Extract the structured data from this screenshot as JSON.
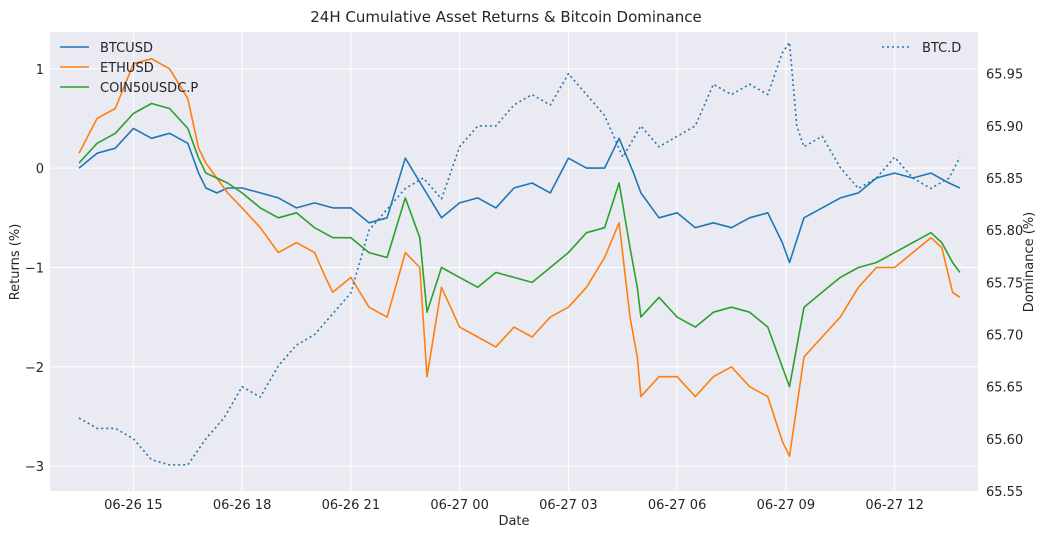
{
  "chart_data": {
    "type": "line",
    "title": "24H Cumulative Asset Returns & Bitcoin Dominance",
    "xlabel": "Date",
    "ylabel": "Returns (%)",
    "y2label": "Dominance (%)",
    "x_ticks": [
      "06-26 15",
      "06-26 18",
      "06-26 21",
      "06-27 00",
      "06-27 03",
      "06-27 06",
      "06-27 09",
      "06-27 12"
    ],
    "x_range_hours": [
      12.7,
      38.3
    ],
    "ylim": [
      -3.25,
      1.37
    ],
    "y_ticks": [
      1,
      0,
      -1,
      -2,
      -3
    ],
    "y2lim": [
      65.55,
      65.99
    ],
    "y2_ticks": [
      65.95,
      65.9,
      65.85,
      65.8,
      65.75,
      65.7,
      65.65,
      65.6,
      65.55
    ],
    "grid": true,
    "legend_left": "top-left",
    "legend_right": "top-right",
    "series": [
      {
        "name": "BTCUSD",
        "color": "#1f77b4",
        "style": "solid",
        "axis": "left",
        "x": [
          13.5,
          14.0,
          14.5,
          15.0,
          15.5,
          16.0,
          16.5,
          16.8,
          17.0,
          17.3,
          17.6,
          18.0,
          18.5,
          19.0,
          19.5,
          20.0,
          20.5,
          21.0,
          21.5,
          22.0,
          22.5,
          23.0,
          23.5,
          24.0,
          24.5,
          25.0,
          25.5,
          26.0,
          26.5,
          27.0,
          27.5,
          28.0,
          28.4,
          28.8,
          29.0,
          29.5,
          30.0,
          30.5,
          31.0,
          31.5,
          32.0,
          32.5,
          32.9,
          33.1,
          33.5,
          34.0,
          34.5,
          35.0,
          35.5,
          36.0,
          36.5,
          37.0,
          37.5,
          37.8
        ],
        "values": [
          0.0,
          0.15,
          0.2,
          0.4,
          0.3,
          0.35,
          0.25,
          -0.05,
          -0.2,
          -0.25,
          -0.2,
          -0.2,
          -0.25,
          -0.3,
          -0.4,
          -0.35,
          -0.4,
          -0.4,
          -0.55,
          -0.5,
          0.1,
          -0.2,
          -0.5,
          -0.35,
          -0.3,
          -0.4,
          -0.2,
          -0.15,
          -0.25,
          0.1,
          0.0,
          0.0,
          0.3,
          -0.05,
          -0.25,
          -0.5,
          -0.45,
          -0.6,
          -0.55,
          -0.6,
          -0.5,
          -0.45,
          -0.75,
          -0.95,
          -0.5,
          -0.4,
          -0.3,
          -0.25,
          -0.1,
          -0.05,
          -0.1,
          -0.05,
          -0.15,
          -0.2
        ]
      },
      {
        "name": "ETHUSD",
        "color": "#ff7f0e",
        "style": "solid",
        "axis": "left",
        "x": [
          13.5,
          14.0,
          14.5,
          15.0,
          15.5,
          16.0,
          16.5,
          16.8,
          17.0,
          17.3,
          17.6,
          18.0,
          18.5,
          19.0,
          19.5,
          20.0,
          20.3,
          20.5,
          21.0,
          21.5,
          22.0,
          22.5,
          22.9,
          23.1,
          23.5,
          24.0,
          24.5,
          25.0,
          25.5,
          26.0,
          26.5,
          27.0,
          27.5,
          28.0,
          28.4,
          28.7,
          28.9,
          29.0,
          29.5,
          30.0,
          30.5,
          31.0,
          31.5,
          32.0,
          32.5,
          32.9,
          33.1,
          33.5,
          34.0,
          34.5,
          35.0,
          35.5,
          36.0,
          36.5,
          37.0,
          37.3,
          37.6,
          37.8
        ],
        "values": [
          0.15,
          0.5,
          0.6,
          1.05,
          1.1,
          1.0,
          0.7,
          0.2,
          0.05,
          -0.1,
          -0.25,
          -0.4,
          -0.6,
          -0.85,
          -0.75,
          -0.85,
          -1.1,
          -1.25,
          -1.1,
          -1.4,
          -1.5,
          -0.85,
          -1.0,
          -2.1,
          -1.2,
          -1.6,
          -1.7,
          -1.8,
          -1.6,
          -1.7,
          -1.5,
          -1.4,
          -1.2,
          -0.9,
          -0.55,
          -1.5,
          -1.9,
          -2.3,
          -2.1,
          -2.1,
          -2.3,
          -2.1,
          -2.0,
          -2.2,
          -2.3,
          -2.75,
          -2.9,
          -1.9,
          -1.7,
          -1.5,
          -1.2,
          -1.0,
          -1.0,
          -0.85,
          -0.7,
          -0.8,
          -1.25,
          -1.3
        ]
      },
      {
        "name": "COIN50USDC.P",
        "color": "#2ca02c",
        "style": "solid",
        "axis": "left",
        "x": [
          13.5,
          14.0,
          14.5,
          15.0,
          15.5,
          16.0,
          16.5,
          16.8,
          17.0,
          17.3,
          17.6,
          18.0,
          18.5,
          19.0,
          19.5,
          20.0,
          20.5,
          21.0,
          21.5,
          22.0,
          22.5,
          22.9,
          23.1,
          23.5,
          24.0,
          24.5,
          25.0,
          25.5,
          26.0,
          26.5,
          27.0,
          27.5,
          28.0,
          28.4,
          28.7,
          28.9,
          29.0,
          29.5,
          30.0,
          30.5,
          31.0,
          31.5,
          32.0,
          32.5,
          32.9,
          33.1,
          33.5,
          34.0,
          34.5,
          35.0,
          35.5,
          36.0,
          36.5,
          37.0,
          37.3,
          37.6,
          37.8
        ],
        "values": [
          0.05,
          0.25,
          0.35,
          0.55,
          0.65,
          0.6,
          0.4,
          0.1,
          -0.05,
          -0.1,
          -0.15,
          -0.25,
          -0.4,
          -0.5,
          -0.45,
          -0.6,
          -0.7,
          -0.7,
          -0.85,
          -0.9,
          -0.3,
          -0.7,
          -1.45,
          -1.0,
          -1.1,
          -1.2,
          -1.05,
          -1.1,
          -1.15,
          -1.0,
          -0.85,
          -0.65,
          -0.6,
          -0.15,
          -0.8,
          -1.2,
          -1.5,
          -1.3,
          -1.5,
          -1.6,
          -1.45,
          -1.4,
          -1.45,
          -1.6,
          -2.0,
          -2.2,
          -1.4,
          -1.25,
          -1.1,
          -1.0,
          -0.95,
          -0.85,
          -0.75,
          -0.65,
          -0.75,
          -0.95,
          -1.05
        ]
      },
      {
        "name": "BTC.D",
        "color": "#1f77b4",
        "style": "dotted",
        "axis": "right",
        "x": [
          13.5,
          14.0,
          14.5,
          15.0,
          15.5,
          16.0,
          16.5,
          17.0,
          17.5,
          18.0,
          18.5,
          19.0,
          19.5,
          20.0,
          20.5,
          21.0,
          21.5,
          22.0,
          22.5,
          23.0,
          23.5,
          24.0,
          24.5,
          25.0,
          25.5,
          26.0,
          26.5,
          27.0,
          27.5,
          28.0,
          28.5,
          29.0,
          29.5,
          30.0,
          30.5,
          31.0,
          31.5,
          32.0,
          32.5,
          32.9,
          33.1,
          33.3,
          33.5,
          34.0,
          34.5,
          35.0,
          35.5,
          36.0,
          36.5,
          37.0,
          37.5,
          37.8
        ],
        "values": [
          65.62,
          65.61,
          65.61,
          65.6,
          65.58,
          65.575,
          65.575,
          65.6,
          65.62,
          65.65,
          65.64,
          65.67,
          65.69,
          65.7,
          65.72,
          65.74,
          65.8,
          65.82,
          65.84,
          65.85,
          65.83,
          65.88,
          65.9,
          65.9,
          65.92,
          65.93,
          65.92,
          65.95,
          65.93,
          65.91,
          65.87,
          65.9,
          65.88,
          65.89,
          65.9,
          65.94,
          65.93,
          65.94,
          65.93,
          65.97,
          65.98,
          65.9,
          65.88,
          65.89,
          65.86,
          65.84,
          65.85,
          65.87,
          65.85,
          65.84,
          65.85,
          65.87
        ]
      }
    ]
  }
}
